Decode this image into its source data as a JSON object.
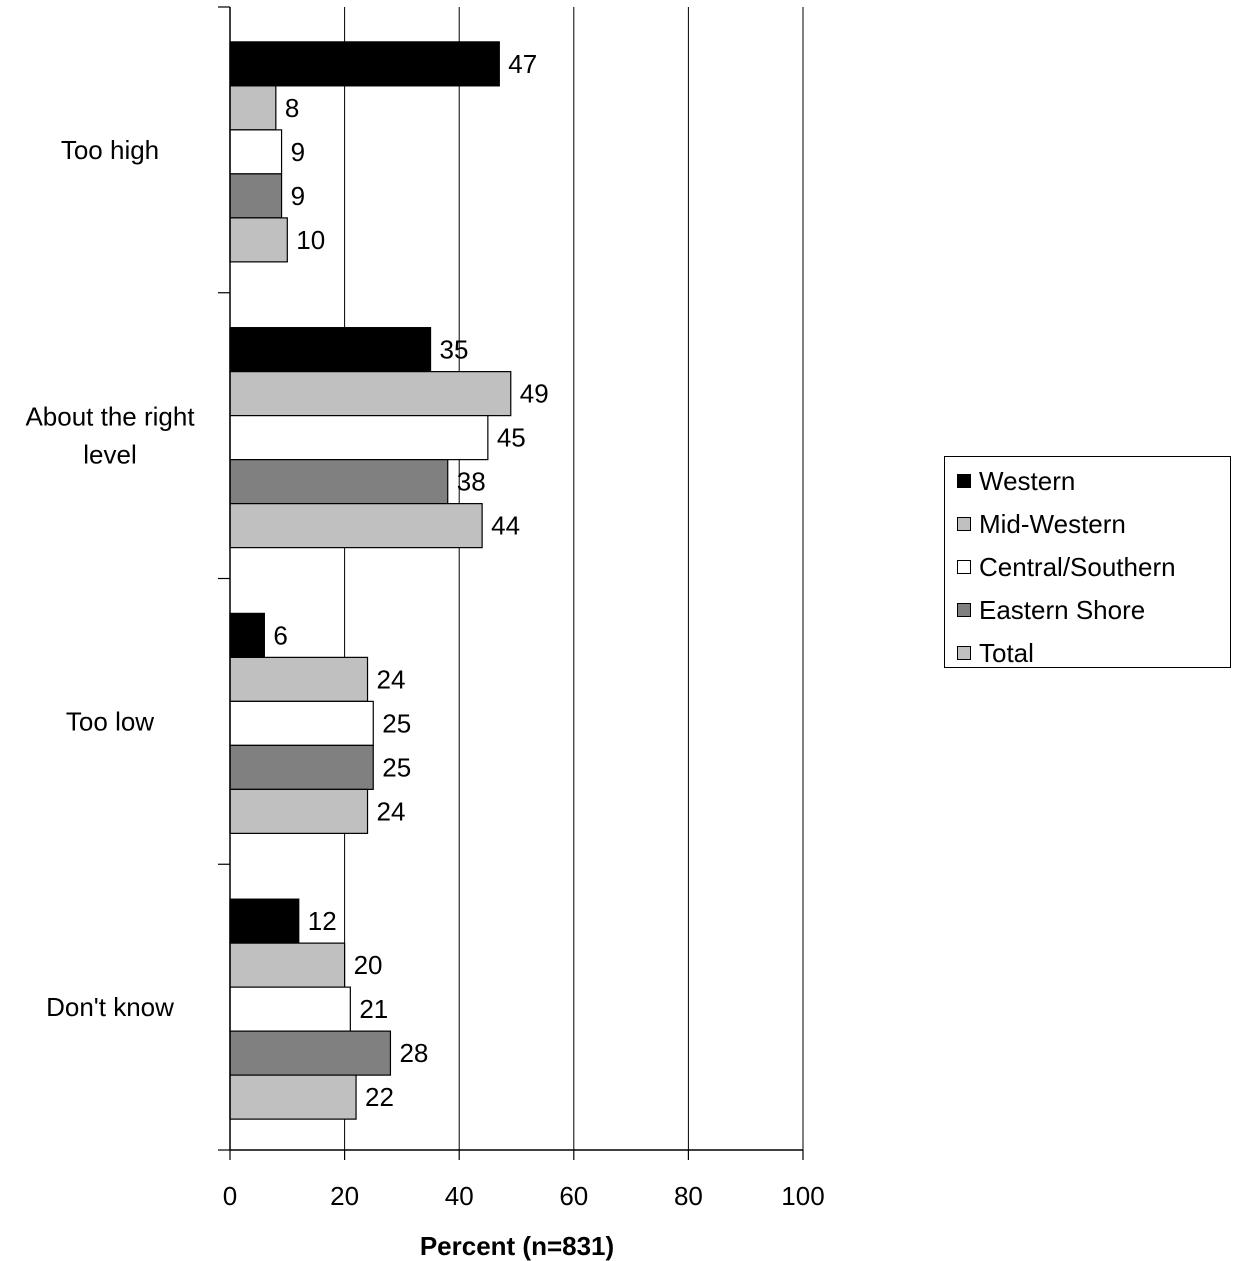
{
  "chart_data": {
    "type": "bar",
    "orientation": "horizontal",
    "xlabel": "Percent (n=831)",
    "xlim": [
      0,
      100
    ],
    "xticks": [
      0,
      20,
      40,
      60,
      80,
      100
    ],
    "grid": "vertical",
    "legend_position": "right",
    "categories": [
      "Too high",
      "About the right level",
      "Too low",
      "Don't know"
    ],
    "series": [
      {
        "name": "Western",
        "color": "#000000",
        "values": [
          47,
          35,
          6,
          12
        ]
      },
      {
        "name": "Mid-Western",
        "color": "#c0c0c0",
        "values": [
          8,
          49,
          24,
          20
        ]
      },
      {
        "name": "Central/Southern",
        "color": "#ffffff",
        "values": [
          9,
          45,
          25,
          21
        ]
      },
      {
        "name": "Eastern Shore",
        "color": "#808080",
        "values": [
          9,
          38,
          25,
          28
        ]
      },
      {
        "name": "Total",
        "color": "#c0c0c0",
        "values": [
          10,
          44,
          24,
          22
        ]
      }
    ]
  }
}
